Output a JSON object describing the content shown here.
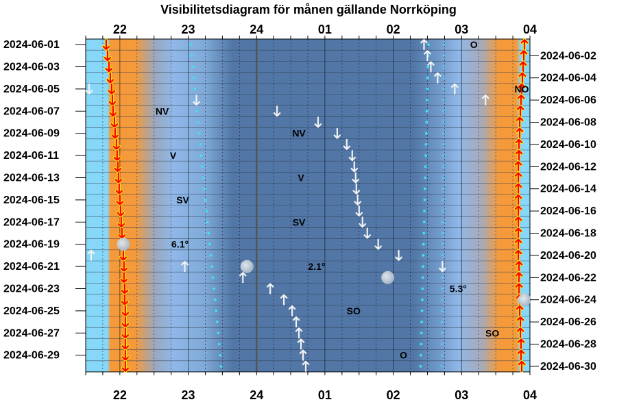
{
  "chart_data": {
    "type": "timeline",
    "title": "Visibilitetsdiagram för månen gällande Norrköping",
    "hour_ticks": [
      {
        "t": 22,
        "label": "22"
      },
      {
        "t": 23,
        "label": "23"
      },
      {
        "t": 24,
        "label": "24"
      },
      {
        "t": 25,
        "label": "01"
      },
      {
        "t": 26,
        "label": "02"
      },
      {
        "t": 27,
        "label": "03"
      },
      {
        "t": 28,
        "label": "04"
      }
    ],
    "xlim": [
      21.5,
      28.0
    ],
    "days": 30,
    "left_dates": [
      "2024-06-01",
      "2024-06-03",
      "2024-06-05",
      "2024-06-07",
      "2024-06-09",
      "2024-06-11",
      "2024-06-13",
      "2024-06-15",
      "2024-06-17",
      "2024-06-19",
      "2024-06-21",
      "2024-06-23",
      "2024-06-25",
      "2024-06-27",
      "2024-06-29"
    ],
    "right_dates": [
      "2024-06-02",
      "2024-06-04",
      "2024-06-06",
      "2024-06-08",
      "2024-06-10",
      "2024-06-12",
      "2024-06-14",
      "2024-06-16",
      "2024-06-18",
      "2024-06-20",
      "2024-06-22",
      "2024-06-24",
      "2024-06-26",
      "2024-06-28",
      "2024-06-30"
    ],
    "sunset_times": [
      21.8,
      21.82,
      21.84,
      21.86,
      21.88,
      21.89,
      21.9,
      21.92,
      21.93,
      21.95,
      21.96,
      21.97,
      21.98,
      21.99,
      22.0,
      22.01,
      22.02,
      22.03,
      22.04,
      22.05,
      22.06,
      22.06,
      22.07,
      22.07,
      22.08,
      22.08,
      22.08,
      22.08,
      22.08,
      22.08
    ],
    "sunrise_times": [
      27.92,
      27.91,
      27.9,
      27.89,
      27.88,
      27.87,
      27.86,
      27.85,
      27.85,
      27.84,
      27.84,
      27.83,
      27.83,
      27.83,
      27.83,
      27.83,
      27.83,
      27.83,
      27.83,
      27.83,
      27.84,
      27.84,
      27.84,
      27.85,
      27.85,
      27.86,
      27.86,
      27.87,
      27.87,
      27.88
    ],
    "moonrise": [
      {
        "day": 1,
        "t": 26.45
      },
      {
        "day": 2,
        "t": 26.5
      },
      {
        "day": 3,
        "t": 26.55
      },
      {
        "day": 4,
        "t": 26.65
      },
      {
        "day": 5,
        "t": 26.9
      },
      {
        "day": 6,
        "t": 27.35
      },
      {
        "day": 20,
        "t": 21.58
      },
      {
        "day": 21,
        "t": 22.95
      },
      {
        "day": 22,
        "t": 23.8
      },
      {
        "day": 23,
        "t": 24.2
      },
      {
        "day": 24,
        "t": 24.4
      },
      {
        "day": 25,
        "t": 24.52
      },
      {
        "day": 26,
        "t": 24.58
      },
      {
        "day": 27,
        "t": 24.62
      },
      {
        "day": 28,
        "t": 24.65
      },
      {
        "day": 29,
        "t": 24.68
      },
      {
        "day": 30,
        "t": 24.72
      }
    ],
    "moonset": [
      {
        "day": 5,
        "t": 21.55
      },
      {
        "day": 6,
        "t": 23.12
      },
      {
        "day": 7,
        "t": 24.3
      },
      {
        "day": 8,
        "t": 24.9
      },
      {
        "day": 9,
        "t": 25.18
      },
      {
        "day": 10,
        "t": 25.32
      },
      {
        "day": 11,
        "t": 25.4
      },
      {
        "day": 12,
        "t": 25.43
      },
      {
        "day": 13,
        "t": 25.45
      },
      {
        "day": 14,
        "t": 25.46
      },
      {
        "day": 15,
        "t": 25.48
      },
      {
        "day": 16,
        "t": 25.5
      },
      {
        "day": 17,
        "t": 25.55
      },
      {
        "day": 18,
        "t": 25.62
      },
      {
        "day": 19,
        "t": 25.78
      },
      {
        "day": 20,
        "t": 26.08
      },
      {
        "day": 21,
        "t": 26.72
      }
    ],
    "moon_icons": [
      {
        "day": 19,
        "t": 22.05,
        "lit": 0.9
      },
      {
        "day": 21,
        "t": 23.86,
        "lit": 0.98
      },
      {
        "day": 22,
        "t": 25.92,
        "lit": 1.0
      },
      {
        "day": 24,
        "t": 27.92,
        "lit": 0.95
      }
    ],
    "annotations": [
      {
        "day": 1,
        "t": 27.18,
        "text": "O"
      },
      {
        "day": 5,
        "t": 27.88,
        "text": "NO"
      },
      {
        "day": 7,
        "t": 22.62,
        "text": "NV"
      },
      {
        "day": 9,
        "t": 24.62,
        "text": "NV"
      },
      {
        "day": 11,
        "t": 22.78,
        "text": "V"
      },
      {
        "day": 13,
        "t": 24.65,
        "text": "V"
      },
      {
        "day": 15,
        "t": 22.92,
        "text": "SV"
      },
      {
        "day": 17,
        "t": 24.62,
        "text": "SV"
      },
      {
        "day": 19,
        "t": 22.88,
        "text": "6.1°"
      },
      {
        "day": 21,
        "t": 24.88,
        "text": "2.1°"
      },
      {
        "day": 23,
        "t": 26.95,
        "text": "5.3°"
      },
      {
        "day": 25,
        "t": 25.42,
        "text": "SO"
      },
      {
        "day": 27,
        "t": 27.45,
        "text": "SO"
      },
      {
        "day": 29,
        "t": 26.15,
        "text": "O"
      }
    ],
    "colors": {
      "day_sky": "#87d7f8",
      "twilight": "#f59a3a",
      "night_edge": "#7fa9d8",
      "night_core": "#5277a6",
      "grid": "#000000",
      "midnight_line": "#555555",
      "dots": "#3fe3f0",
      "sun_arrow": "#ff0000",
      "sun_arrow_outline": "#ffee00",
      "moon_arrow": "#f2f2f2"
    }
  }
}
